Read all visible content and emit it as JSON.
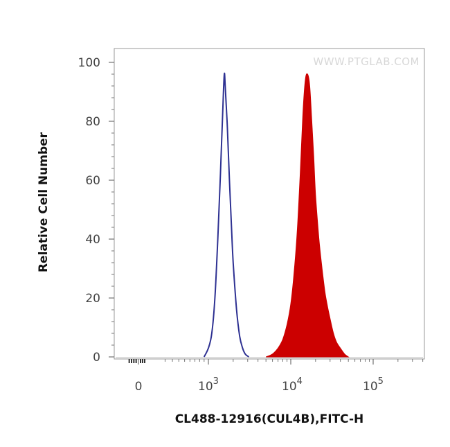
{
  "chart_data": {
    "type": "area",
    "xscale": "biexponential",
    "xlabel": "CL488-12916(CUL4B),FITC-H",
    "ylabel": "Relative Cell Number",
    "watermark": "WWW.PTGLAB.COM",
    "ylim": [
      0,
      100
    ],
    "xlim": [
      -300,
      400000
    ],
    "x_tick_labels": [
      {
        "value": 0,
        "base": "0",
        "exp": ""
      },
      {
        "value": 1000,
        "base": "10",
        "exp": "3"
      },
      {
        "value": 10000,
        "base": "10",
        "exp": "4"
      },
      {
        "value": 100000,
        "base": "10",
        "exp": "5"
      }
    ],
    "y_ticks": [
      0,
      20,
      40,
      60,
      80,
      100
    ],
    "grid": false,
    "legend": "none",
    "series": [
      {
        "style": "outline",
        "color": "#2e3192",
        "x": [
          900,
          1000,
          1100,
          1200,
          1300,
          1400,
          1500,
          1560,
          1600,
          1700,
          1800,
          1900,
          2000,
          2200,
          2400,
          2600,
          2800,
          3100
        ],
        "y": [
          0,
          3,
          8,
          20,
          40,
          62,
          85,
          96,
          92,
          78,
          60,
          45,
          32,
          16,
          7,
          3,
          1,
          0
        ]
      },
      {
        "style": "filled",
        "color": "#cc0000",
        "x": [
          5000,
          6000,
          7000,
          8000,
          9000,
          10000,
          11000,
          12000,
          13000,
          14000,
          15000,
          16000,
          17000,
          18000,
          19000,
          20000,
          22000,
          24000,
          26000,
          28000,
          30000,
          33000,
          36000,
          40000,
          45000,
          50000
        ],
        "y": [
          0,
          1,
          3,
          6,
          11,
          18,
          29,
          43,
          62,
          82,
          94,
          96,
          92,
          80,
          68,
          55,
          40,
          30,
          22,
          17,
          13,
          8,
          5,
          3,
          1,
          0
        ]
      }
    ]
  }
}
